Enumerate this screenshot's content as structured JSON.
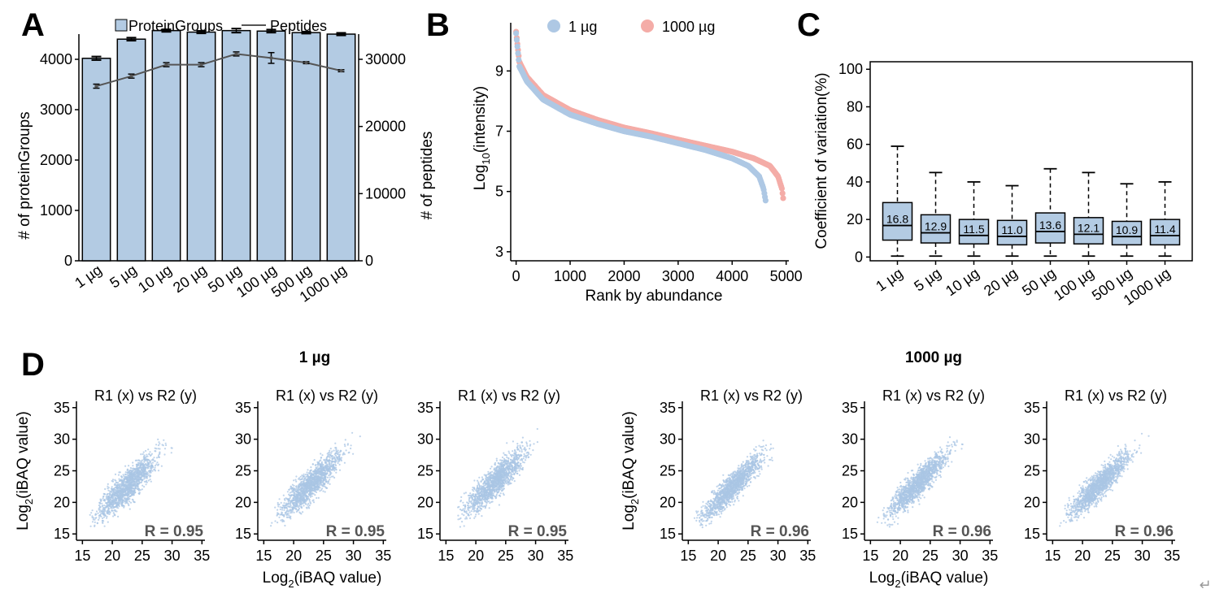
{
  "panels": {
    "A": "A",
    "B": "B",
    "C": "C",
    "D": "D"
  },
  "colors": {
    "bar_fill": "#b3cbe3",
    "line": "#555555",
    "series_1ug": "#aec8e4",
    "series_1000ug": "#f4aca7",
    "scatter": "#a9c6e4",
    "box_fill": "#b3cbe3"
  },
  "chart_data": [
    {
      "id": "A",
      "type": "bar+line",
      "categories": [
        "1 µg",
        "5 µg",
        "10 µg",
        "20 µg",
        "50 µg",
        "100 µg",
        "500 µg",
        "1000 µg"
      ],
      "legend": {
        "bar": "ProteinGroups",
        "line": "Peptides",
        "placement": "top"
      },
      "ylabel": "# of proteinGroups",
      "y2label": "# of peptides",
      "ylim": [
        0,
        4500
      ],
      "y2lim": [
        0,
        33750
      ],
      "yticks": [
        "0",
        "1000",
        "2000",
        "3000",
        "4000"
      ],
      "y2ticks": [
        "0",
        "10000",
        "20000",
        "30000"
      ],
      "bars": {
        "values": [
          4020,
          4400,
          4570,
          4540,
          4570,
          4560,
          4530,
          4500
        ],
        "err": [
          35,
          30,
          25,
          25,
          40,
          30,
          20,
          25
        ]
      },
      "line_series": {
        "values": [
          26000,
          27500,
          29200,
          29200,
          30800,
          30200,
          29500,
          28300
        ],
        "err": [
          300,
          300,
          300,
          300,
          300,
          800,
          150,
          150
        ]
      }
    },
    {
      "id": "B",
      "type": "scatter",
      "xlabel": "Rank by abundance",
      "ylabel_main": "Log",
      "ylabel_sub": "10",
      "ylabel_rest": "(intensity)",
      "xlim": [
        -100,
        5050
      ],
      "ylim": [
        2.7,
        10.6
      ],
      "xticks": [
        "0",
        "1000",
        "2000",
        "3000",
        "4000",
        "5000"
      ],
      "yticks": [
        "3",
        "5",
        "7",
        "9"
      ],
      "legend_placement": "top",
      "series": [
        {
          "name": "1 µg",
          "n": 4620,
          "points": [
            [
              0,
              10.25
            ],
            [
              60,
              9.15
            ],
            [
              200,
              8.65
            ],
            [
              500,
              8.05
            ],
            [
              1000,
              7.55
            ],
            [
              1500,
              7.25
            ],
            [
              2000,
              7.0
            ],
            [
              2500,
              6.82
            ],
            [
              3000,
              6.6
            ],
            [
              3500,
              6.38
            ],
            [
              4000,
              6.1
            ],
            [
              4300,
              5.85
            ],
            [
              4500,
              5.5
            ],
            [
              4580,
              5.1
            ],
            [
              4620,
              4.7
            ]
          ]
        },
        {
          "name": "1000 µg",
          "n": 4950,
          "points": [
            [
              0,
              10.3
            ],
            [
              60,
              9.3
            ],
            [
              200,
              8.8
            ],
            [
              500,
              8.2
            ],
            [
              1000,
              7.7
            ],
            [
              1500,
              7.38
            ],
            [
              2000,
              7.12
            ],
            [
              2500,
              6.93
            ],
            [
              3000,
              6.72
            ],
            [
              3500,
              6.52
            ],
            [
              4000,
              6.32
            ],
            [
              4400,
              6.1
            ],
            [
              4700,
              5.85
            ],
            [
              4850,
              5.5
            ],
            [
              4920,
              5.1
            ],
            [
              4950,
              4.7
            ]
          ]
        }
      ]
    },
    {
      "id": "C",
      "type": "box",
      "categories": [
        "1 µg",
        "5 µg",
        "10 µg",
        "20 µg",
        "50 µg",
        "100 µg",
        "500 µg",
        "1000 µg"
      ],
      "ylabel": "Coefficient of variation(%)",
      "ylim": [
        -2,
        104
      ],
      "yticks": [
        "0",
        "20",
        "40",
        "60",
        "80",
        "100"
      ],
      "boxes": [
        {
          "median": 16.8,
          "label": "16.8",
          "q1": 9,
          "q3": 29,
          "lo": 0.5,
          "hi": 59
        },
        {
          "median": 12.9,
          "label": "12.9",
          "q1": 7.5,
          "q3": 22.5,
          "lo": 0.5,
          "hi": 45
        },
        {
          "median": 11.5,
          "label": "11.5",
          "q1": 7,
          "q3": 20,
          "lo": 0.5,
          "hi": 40
        },
        {
          "median": 11.0,
          "label": "11.0",
          "q1": 6.5,
          "q3": 19.5,
          "lo": 0.5,
          "hi": 38
        },
        {
          "median": 13.6,
          "label": "13.6",
          "q1": 7.5,
          "q3": 23.5,
          "lo": 0.5,
          "hi": 47
        },
        {
          "median": 12.1,
          "label": "12.1",
          "q1": 7,
          "q3": 21,
          "lo": 0.5,
          "hi": 45
        },
        {
          "median": 10.9,
          "label": "10.9",
          "q1": 6.5,
          "q3": 19,
          "lo": 0.5,
          "hi": 39
        },
        {
          "median": 11.4,
          "label": "11.4",
          "q1": 6.5,
          "q3": 20,
          "lo": 0.5,
          "hi": 40
        }
      ]
    },
    {
      "id": "D",
      "type": "scatter",
      "group_headings": [
        "1 µg",
        "1000 µg"
      ],
      "xticks": [
        "15",
        "20",
        "25",
        "30",
        "35"
      ],
      "yticks": [
        "15",
        "20",
        "25",
        "30",
        "35"
      ],
      "xlim": [
        14,
        35.5
      ],
      "ylim": [
        14,
        36
      ],
      "axis_label_main": "Log",
      "axis_label_sub": "2",
      "axis_label_rest": "(iBAQ value)",
      "plots": [
        {
          "title": "R1 (x)  vs R2 (y)",
          "r": "R = 0.95",
          "center": 22.5,
          "spread": 1.0
        },
        {
          "title": "R1 (x)  vs R2 (y)",
          "r": "R = 0.95",
          "center": 23.0,
          "spread": 1.0
        },
        {
          "title": "R1 (x)  vs R2 (y)",
          "r": "R = 0.95",
          "center": 23.5,
          "spread": 1.0
        },
        {
          "title": "R1 (x)  vs R2 (y)",
          "r": "R = 0.96",
          "center": 22.5,
          "spread": 0.85
        },
        {
          "title": "R1 (x)  vs R2 (y)",
          "r": "R = 0.96",
          "center": 23.0,
          "spread": 0.85
        },
        {
          "title": "R1 (x)  vs R2 (y)",
          "r": "R = 0.96",
          "center": 23.0,
          "spread": 0.85
        }
      ]
    }
  ],
  "return_glyph": "↵"
}
